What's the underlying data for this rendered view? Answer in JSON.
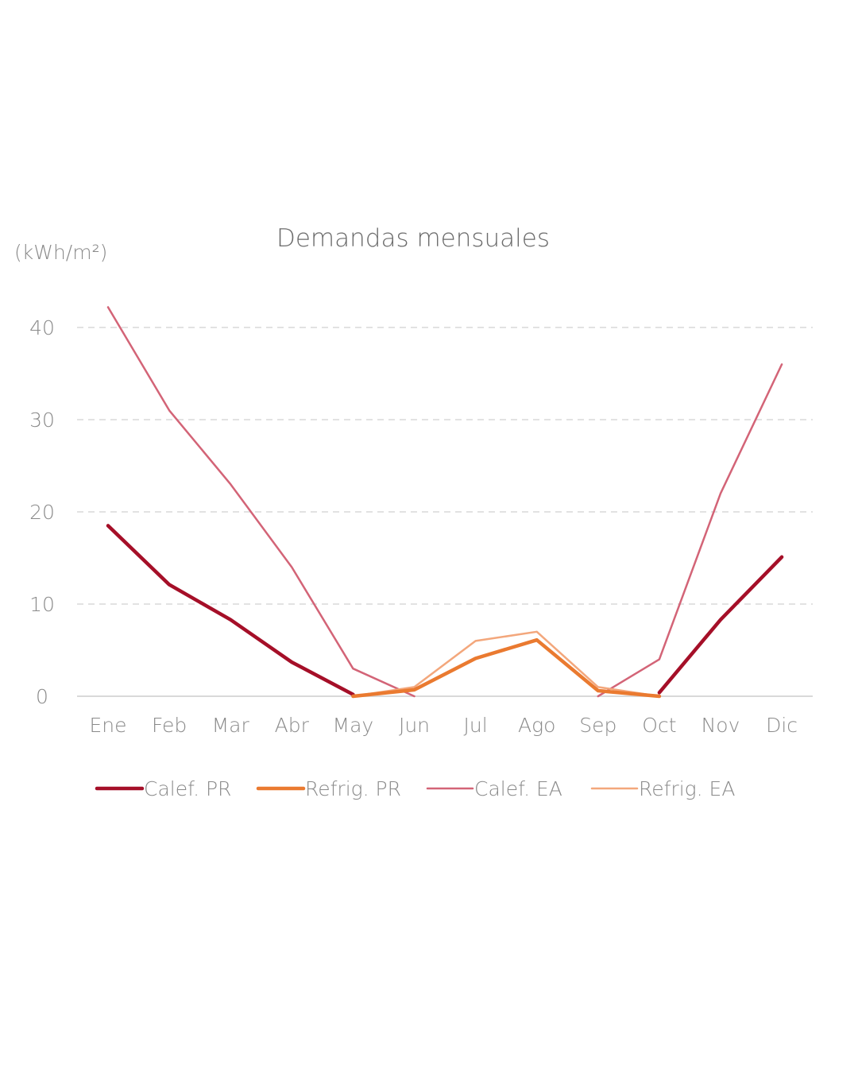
{
  "chart_data": {
    "type": "line",
    "title": "Demandas mensuales",
    "ylabel": "(kWh/m²)",
    "xlabel": "",
    "categories": [
      "Ene",
      "Feb",
      "Mar",
      "Abr",
      "May",
      "Jun",
      "Jul",
      "Ago",
      "Sep",
      "Oct",
      "Nov",
      "Dic"
    ],
    "ylim": [
      0,
      45
    ],
    "yticks": [
      0,
      10,
      20,
      30,
      40
    ],
    "grid": true,
    "legend_position": "bottom",
    "series": [
      {
        "name": "Calef. PR",
        "color": "#a50f28",
        "width": "thick",
        "values": [
          18.5,
          12.1,
          8.3,
          3.7,
          0.2,
          null,
          null,
          null,
          null,
          0.4,
          8.3,
          15.1
        ]
      },
      {
        "name": "Refrig. PR",
        "color": "#ea7a30",
        "width": "thick",
        "values": [
          null,
          null,
          null,
          null,
          0.0,
          0.7,
          4.1,
          6.1,
          0.6,
          0.0,
          null,
          null
        ]
      },
      {
        "name": "Calef. EA",
        "color": "#d36477",
        "width": "thin",
        "values": [
          42.2,
          31.0,
          23.0,
          14.0,
          3.0,
          0.0,
          null,
          null,
          0.0,
          4.0,
          22.0,
          36.0
        ]
      },
      {
        "name": "Refrig. EA",
        "color": "#f3a77c",
        "width": "thin",
        "values": [
          null,
          null,
          null,
          null,
          0.0,
          1.0,
          6.0,
          7.0,
          1.0,
          0.0,
          null,
          null
        ]
      }
    ]
  }
}
